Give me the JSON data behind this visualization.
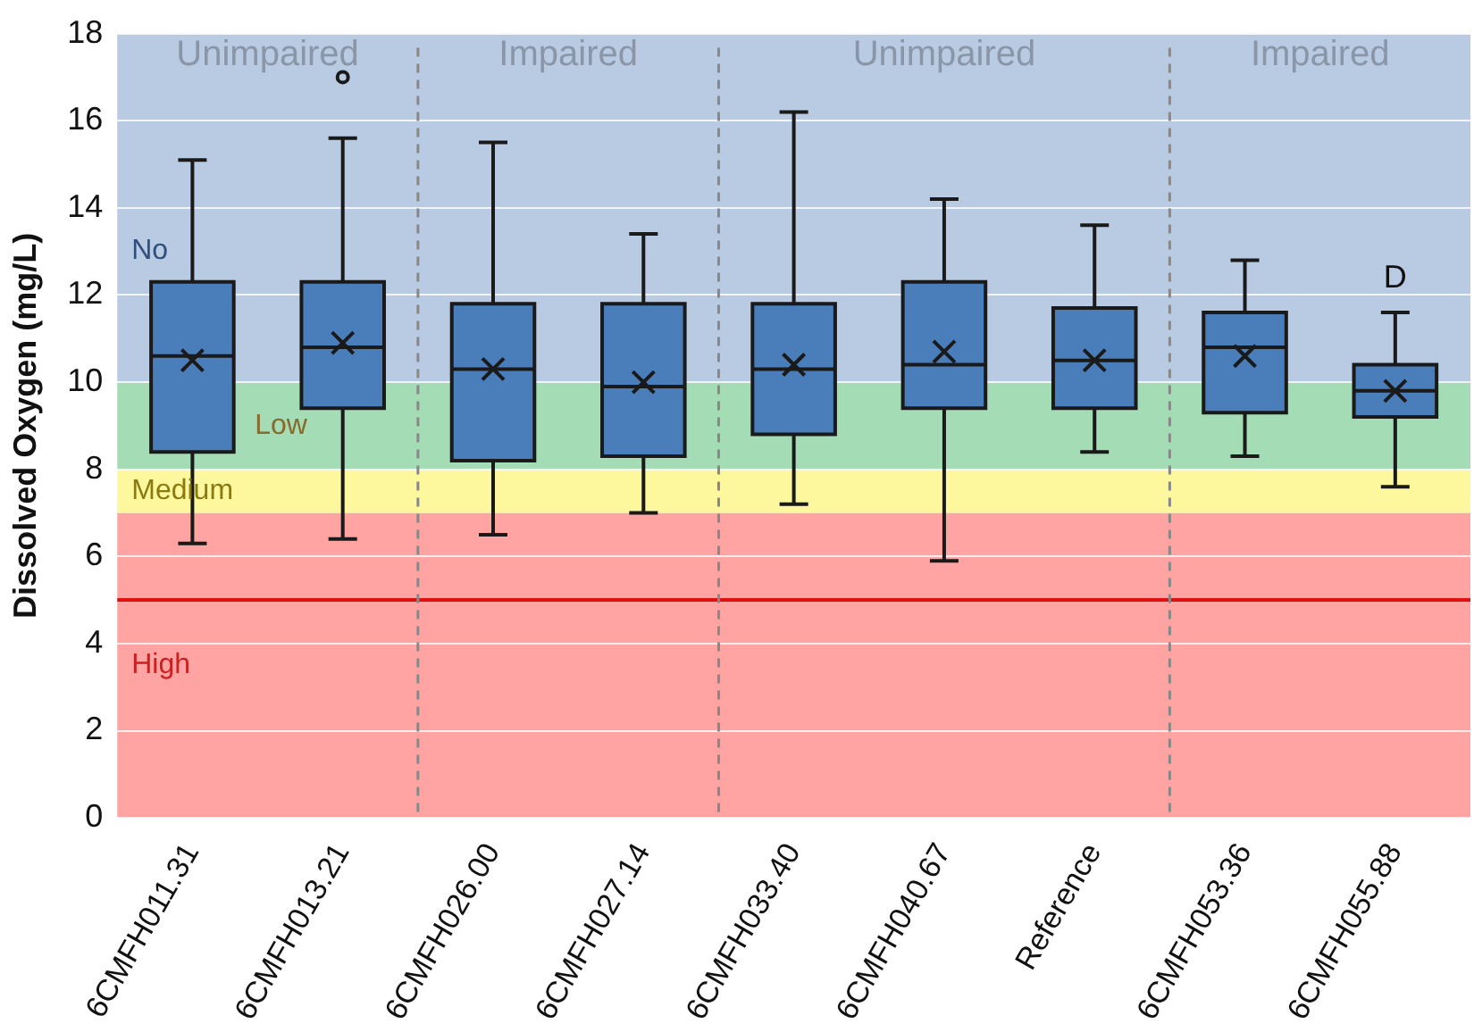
{
  "chart_data": {
    "type": "box",
    "ylabel": "Dissolved Oxygen (mg/L)",
    "categories": [
      "6CMFH011.31",
      "6CMFH013.21",
      "6CMFH026.00",
      "6CMFH027.14",
      "6CMFH033.40",
      "6CMFH040.67",
      "Reference",
      "6CMFH053.36",
      "6CMFH055.88"
    ],
    "color": "#4a7ebb",
    "boxes": [
      {
        "low": 6.3,
        "q1": 8.4,
        "median": 10.6,
        "q3": 12.3,
        "high": 15.1,
        "mean": 10.5
      },
      {
        "low": 6.4,
        "q1": 9.4,
        "median": 10.8,
        "q3": 12.3,
        "high": 15.6,
        "mean": 10.9,
        "outliers": [
          17.0
        ]
      },
      {
        "low": 6.5,
        "q1": 8.2,
        "median": 10.3,
        "q3": 11.8,
        "high": 15.5,
        "mean": 10.3
      },
      {
        "low": 7.0,
        "q1": 8.3,
        "median": 9.9,
        "q3": 11.8,
        "high": 13.4,
        "mean": 10.0
      },
      {
        "low": 7.2,
        "q1": 8.8,
        "median": 10.3,
        "q3": 11.8,
        "high": 16.2,
        "mean": 10.4
      },
      {
        "low": 5.9,
        "q1": 9.4,
        "median": 10.4,
        "q3": 12.3,
        "high": 14.2,
        "mean": 10.7
      },
      {
        "low": 8.4,
        "q1": 9.4,
        "median": 10.5,
        "q3": 11.7,
        "high": 13.6,
        "mean": 10.5
      },
      {
        "low": 8.3,
        "q1": 9.3,
        "median": 10.8,
        "q3": 11.6,
        "high": 12.8,
        "mean": 10.6
      },
      {
        "low": 7.6,
        "q1": 9.2,
        "median": 9.8,
        "q3": 10.4,
        "high": 11.6,
        "mean": 9.8
      }
    ],
    "ylim": [
      0,
      18
    ],
    "yticks": [
      0,
      2,
      4,
      6,
      8,
      10,
      12,
      14,
      16,
      18
    ],
    "grid": "y",
    "legend": false,
    "bands": [
      {
        "axis": "y",
        "from": 0,
        "to": 7,
        "label": "High",
        "color": "#ffa3a3"
      },
      {
        "axis": "y",
        "from": 7,
        "to": 8,
        "label": "Medium",
        "color": "#fdf79e"
      },
      {
        "axis": "y",
        "from": 8,
        "to": 10,
        "label": "Low",
        "color": "#a3dcb5"
      },
      {
        "axis": "y",
        "from": 10,
        "to": 18,
        "label": "No",
        "color": "#b9cbe2"
      }
    ],
    "ref_lines": [
      {
        "axis": "y",
        "value": 5,
        "color": "#e01010",
        "line_style": "solid"
      }
    ],
    "annotations": [
      "Unimpaired",
      "Impaired",
      "Unimpaired",
      "Impaired",
      "D"
    ]
  }
}
